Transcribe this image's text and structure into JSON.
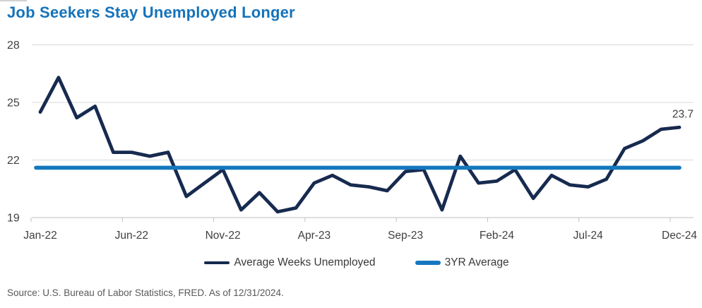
{
  "title": "Job Seekers Stay Unemployed Longer",
  "source": "Source: U.S. Bureau of Labor Statistics, FRED. As of 12/31/2024.",
  "colors": {
    "title": "#1573BA",
    "series": "#172A4F",
    "average": "#1478BE",
    "grid": "#D9D9D9",
    "axis": "#BFBFBF",
    "tick_text": "#404040",
    "legend_text": "#3A3A3A",
    "source_text": "#595959",
    "annotation": "#404040"
  },
  "legend": [
    {
      "label": "Average Weeks Unemployed",
      "color_key": "series"
    },
    {
      "label": "3YR Average",
      "color_key": "average"
    }
  ],
  "chart_data": {
    "type": "line",
    "title": "Job Seekers Stay Unemployed Longer",
    "x": [
      "Jan-22",
      "Feb-22",
      "Mar-22",
      "Apr-22",
      "May-22",
      "Jun-22",
      "Jul-22",
      "Aug-22",
      "Sep-22",
      "Oct-22",
      "Nov-22",
      "Dec-22",
      "Jan-23",
      "Feb-23",
      "Mar-23",
      "Apr-23",
      "May-23",
      "Jun-23",
      "Jul-23",
      "Aug-23",
      "Sep-23",
      "Oct-23",
      "Nov-23",
      "Dec-23",
      "Jan-24",
      "Feb-24",
      "Mar-24",
      "Apr-24",
      "May-24",
      "Jun-24",
      "Jul-24",
      "Aug-24",
      "Sep-24",
      "Oct-24",
      "Nov-24",
      "Dec-24"
    ],
    "series": [
      {
        "name": "Average Weeks Unemployed",
        "values": [
          24.5,
          26.3,
          24.2,
          24.8,
          22.4,
          22.4,
          22.2,
          22.4,
          20.1,
          20.8,
          21.5,
          19.4,
          20.3,
          19.3,
          19.5,
          20.8,
          21.2,
          20.7,
          20.6,
          20.4,
          21.4,
          21.5,
          19.4,
          22.2,
          20.8,
          20.9,
          21.5,
          20.0,
          21.2,
          20.7,
          20.6,
          21.0,
          22.6,
          23.0,
          23.6,
          23.7
        ]
      },
      {
        "name": "3YR Average",
        "constant": 21.6
      }
    ],
    "ylim": [
      19,
      28
    ],
    "yticks": [
      19,
      22,
      25,
      28
    ],
    "xtick_labels": [
      "Jan-22",
      "Jun-22",
      "Nov-22",
      "Apr-23",
      "Sep-23",
      "Feb-24",
      "Jul-24",
      "Dec-24"
    ],
    "annotation": {
      "text": "23.7",
      "at": "Dec-24"
    },
    "grid": "horizontal-only",
    "legend_position": "bottom"
  }
}
